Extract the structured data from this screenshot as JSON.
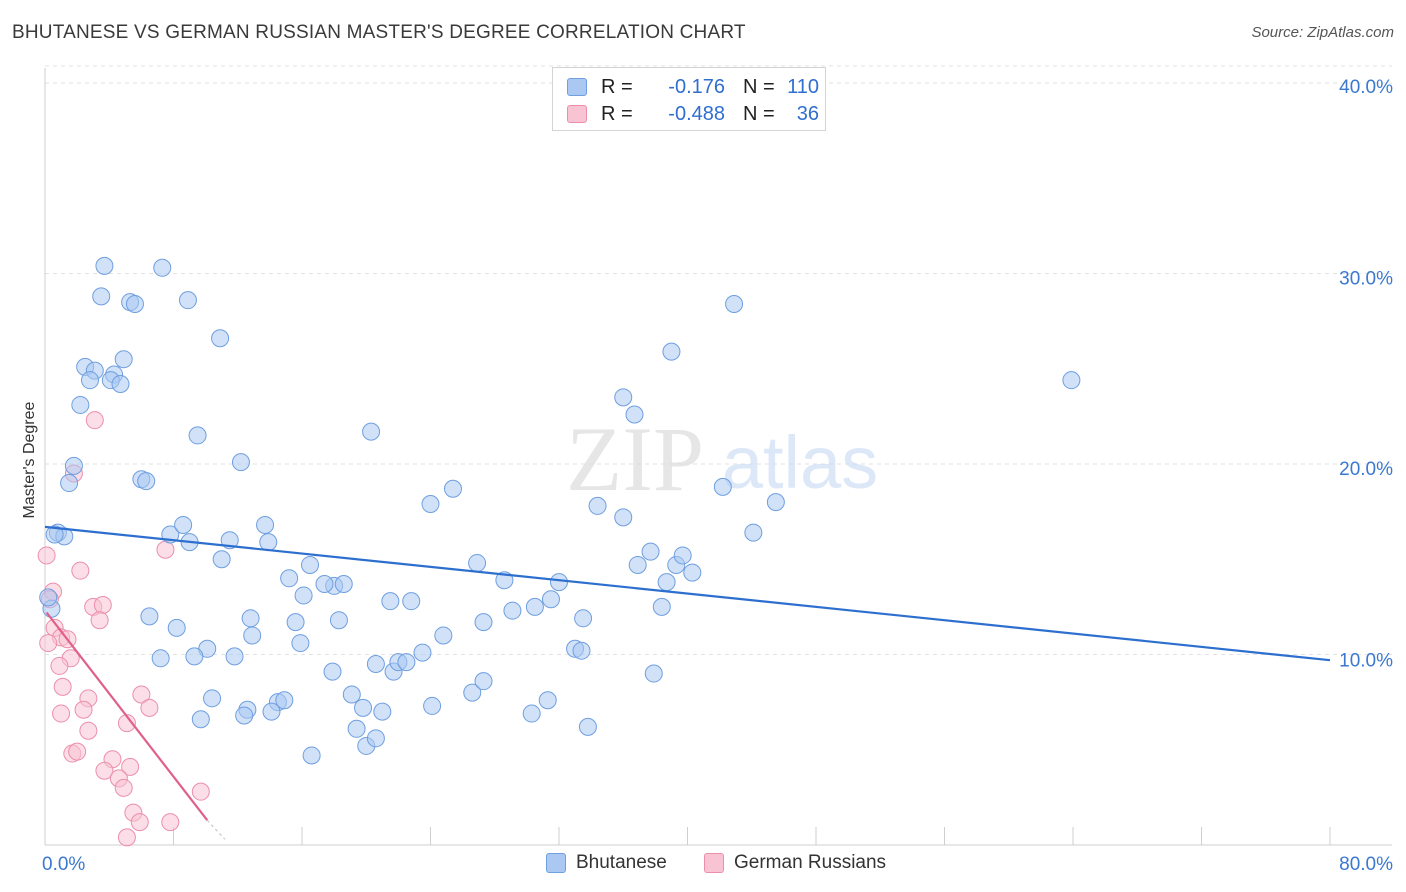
{
  "title": "BHUTANESE VS GERMAN RUSSIAN MASTER'S DEGREE CORRELATION CHART",
  "source": "Source: ZipAtlas.com",
  "watermark": {
    "zip": "ZIP",
    "atlas": "atlas"
  },
  "colors": {
    "blue_fill": "#aac8f2",
    "blue_stroke": "#6f9fe0",
    "blue_line": "#2d6fcf",
    "pink_fill": "#f8c3d3",
    "pink_stroke": "#ec8fab",
    "pink_line": "#e0608a",
    "axis_text": "#3b78d0",
    "grid": "#e2e2e2"
  },
  "legend": {
    "rows": [
      {
        "r_label": "R =",
        "r_value": "-0.176",
        "n_label": "N =",
        "n_value": "110"
      },
      {
        "r_label": "R =",
        "r_value": "-0.488",
        "n_label": "N =",
        "n_value": "36"
      }
    ]
  },
  "bottom_legend": [
    "Bhutanese",
    "German Russians"
  ],
  "chart_data": {
    "type": "scatter",
    "title": "BHUTANESE VS GERMAN RUSSIAN MASTER'S DEGREE CORRELATION CHART",
    "xlabel": "",
    "ylabel": "Master's Degree",
    "xlim": [
      0,
      80
    ],
    "ylim": [
      0,
      42
    ],
    "x_tick_labels": [
      "0.0%",
      "80.0%"
    ],
    "y_ticks": [
      10,
      20,
      30,
      40
    ],
    "y_tick_labels": [
      "10.0%",
      "20.0%",
      "30.0%",
      "40.0%"
    ],
    "grid": true,
    "series": [
      {
        "name": "Bhutanese",
        "R": -0.176,
        "N": 110,
        "trend": {
          "x": [
            0,
            80
          ],
          "y": [
            16.7,
            9.7
          ]
        },
        "points": [
          [
            3.7,
            30.4
          ],
          [
            7.3,
            30.3
          ],
          [
            3.5,
            28.8
          ],
          [
            5.3,
            28.5
          ],
          [
            5.6,
            28.4
          ],
          [
            8.9,
            28.6
          ],
          [
            10.9,
            26.6
          ],
          [
            4.9,
            25.5
          ],
          [
            2.5,
            25.1
          ],
          [
            3.1,
            24.9
          ],
          [
            4.3,
            24.7
          ],
          [
            2.8,
            24.4
          ],
          [
            4.1,
            24.4
          ],
          [
            4.7,
            24.2
          ],
          [
            2.2,
            23.1
          ],
          [
            9.5,
            21.5
          ],
          [
            20.3,
            21.7
          ],
          [
            12.2,
            20.1
          ],
          [
            1.8,
            19.9
          ],
          [
            6.0,
            19.2
          ],
          [
            6.3,
            19.1
          ],
          [
            1.5,
            19.0
          ],
          [
            25.4,
            18.7
          ],
          [
            24.0,
            17.9
          ],
          [
            34.4,
            17.8
          ],
          [
            36.0,
            17.2
          ],
          [
            0.8,
            16.4
          ],
          [
            1.2,
            16.2
          ],
          [
            13.7,
            16.8
          ],
          [
            7.8,
            16.3
          ],
          [
            8.6,
            16.8
          ],
          [
            9.0,
            15.9
          ],
          [
            11.5,
            16.0
          ],
          [
            13.9,
            15.9
          ],
          [
            11.0,
            15.0
          ],
          [
            16.5,
            14.7
          ],
          [
            26.9,
            14.8
          ],
          [
            36.9,
            14.7
          ],
          [
            37.7,
            15.4
          ],
          [
            39.3,
            14.7
          ],
          [
            39.7,
            15.2
          ],
          [
            15.2,
            14.0
          ],
          [
            18.0,
            13.6
          ],
          [
            17.4,
            13.7
          ],
          [
            18.6,
            13.7
          ],
          [
            16.1,
            13.1
          ],
          [
            28.6,
            13.9
          ],
          [
            32.0,
            13.8
          ],
          [
            38.7,
            13.8
          ],
          [
            40.3,
            14.3
          ],
          [
            21.5,
            12.8
          ],
          [
            22.8,
            12.8
          ],
          [
            24.8,
            11.0
          ],
          [
            27.3,
            11.7
          ],
          [
            29.1,
            12.3
          ],
          [
            30.5,
            12.5
          ],
          [
            31.5,
            12.9
          ],
          [
            33.5,
            11.9
          ],
          [
            38.4,
            12.5
          ],
          [
            6.5,
            12.0
          ],
          [
            8.2,
            11.4
          ],
          [
            12.8,
            11.9
          ],
          [
            15.6,
            11.7
          ],
          [
            18.3,
            11.8
          ],
          [
            12.9,
            11.0
          ],
          [
            15.9,
            10.6
          ],
          [
            10.1,
            10.3
          ],
          [
            7.2,
            9.8
          ],
          [
            9.3,
            9.9
          ],
          [
            11.8,
            9.9
          ],
          [
            17.9,
            9.1
          ],
          [
            20.6,
            9.5
          ],
          [
            21.7,
            9.1
          ],
          [
            22.0,
            9.6
          ],
          [
            22.5,
            9.6
          ],
          [
            23.5,
            10.1
          ],
          [
            33.0,
            10.3
          ],
          [
            33.4,
            10.2
          ],
          [
            37.9,
            9.0
          ],
          [
            10.4,
            7.7
          ],
          [
            12.6,
            7.1
          ],
          [
            14.5,
            7.5
          ],
          [
            14.9,
            7.6
          ],
          [
            19.1,
            7.9
          ],
          [
            19.8,
            7.2
          ],
          [
            21.0,
            7.0
          ],
          [
            24.1,
            7.3
          ],
          [
            26.6,
            8.0
          ],
          [
            27.3,
            8.6
          ],
          [
            30.3,
            6.9
          ],
          [
            31.3,
            7.6
          ],
          [
            9.7,
            6.6
          ],
          [
            12.4,
            6.8
          ],
          [
            14.1,
            7.0
          ],
          [
            19.4,
            6.1
          ],
          [
            20.0,
            5.2
          ],
          [
            20.6,
            5.6
          ],
          [
            33.8,
            6.2
          ],
          [
            16.6,
            4.7
          ],
          [
            42.9,
            28.4
          ],
          [
            39.0,
            25.9
          ],
          [
            63.9,
            24.4
          ],
          [
            36.0,
            23.5
          ],
          [
            36.7,
            22.6
          ],
          [
            42.2,
            18.8
          ],
          [
            45.5,
            18.0
          ],
          [
            44.1,
            16.4
          ],
          [
            0.4,
            12.4
          ],
          [
            0.2,
            13.0
          ],
          [
            0.6,
            16.3
          ]
        ]
      },
      {
        "name": "German Russians",
        "R": -0.488,
        "N": 36,
        "trend": {
          "x": [
            0.1,
            10.1
          ],
          "y": [
            12.2,
            1.3
          ],
          "dash_x": [
            10.1,
            11.2
          ],
          "dash_y": [
            1.3,
            0.3
          ]
        },
        "points": [
          [
            0.1,
            15.2
          ],
          [
            3.1,
            22.3
          ],
          [
            1.8,
            19.5
          ],
          [
            7.5,
            15.5
          ],
          [
            2.2,
            14.4
          ],
          [
            0.5,
            13.3
          ],
          [
            0.3,
            12.9
          ],
          [
            3.0,
            12.5
          ],
          [
            3.6,
            12.6
          ],
          [
            3.4,
            11.8
          ],
          [
            0.6,
            11.4
          ],
          [
            1.0,
            10.9
          ],
          [
            1.4,
            10.8
          ],
          [
            0.2,
            10.6
          ],
          [
            1.6,
            9.8
          ],
          [
            0.9,
            9.4
          ],
          [
            1.1,
            8.3
          ],
          [
            2.7,
            7.7
          ],
          [
            6.0,
            7.9
          ],
          [
            2.4,
            7.1
          ],
          [
            6.5,
            7.2
          ],
          [
            1.0,
            6.9
          ],
          [
            5.1,
            6.4
          ],
          [
            2.7,
            6.0
          ],
          [
            1.7,
            4.8
          ],
          [
            2.0,
            4.9
          ],
          [
            4.2,
            4.5
          ],
          [
            5.3,
            4.1
          ],
          [
            3.7,
            3.9
          ],
          [
            4.6,
            3.5
          ],
          [
            4.9,
            3.0
          ],
          [
            9.7,
            2.8
          ],
          [
            5.5,
            1.7
          ],
          [
            5.9,
            1.2
          ],
          [
            7.8,
            1.2
          ],
          [
            5.1,
            0.4
          ]
        ]
      }
    ]
  }
}
